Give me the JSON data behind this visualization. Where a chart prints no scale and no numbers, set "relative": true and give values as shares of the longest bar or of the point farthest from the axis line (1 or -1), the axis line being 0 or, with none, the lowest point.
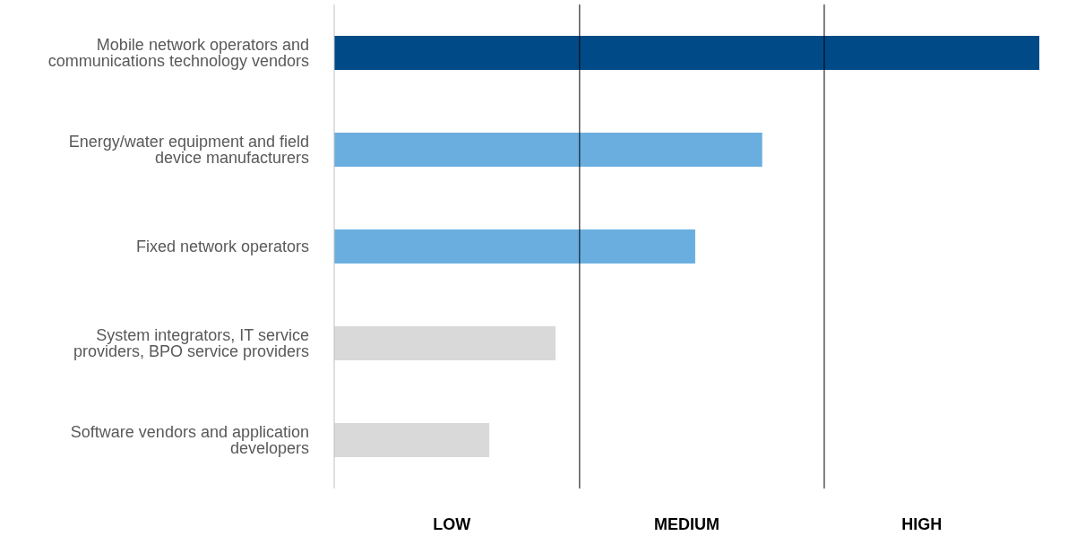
{
  "chart_data": {
    "type": "bar",
    "orientation": "horizontal",
    "relative": true,
    "categories": [
      "Mobile network operators and communications technology vendors",
      "Energy/water equipment and field device manufacturers",
      "Fixed network operators",
      "System integrators, IT service providers, BPO service providers",
      "Software vendors and application developers"
    ],
    "values": [
      1.0,
      0.607,
      0.512,
      0.314,
      0.22
    ],
    "colors": [
      "#004b87",
      "#6aaee0",
      "#6aaee0",
      "#d9d9d9",
      "#d9d9d9"
    ],
    "ref_lines": [
      {
        "axis": "x",
        "value": 0.348,
        "color": "#000000"
      },
      {
        "axis": "x",
        "value": 0.695,
        "color": "#000000"
      }
    ],
    "annotations": [
      "LOW",
      "MEDIUM",
      "HIGH"
    ]
  }
}
